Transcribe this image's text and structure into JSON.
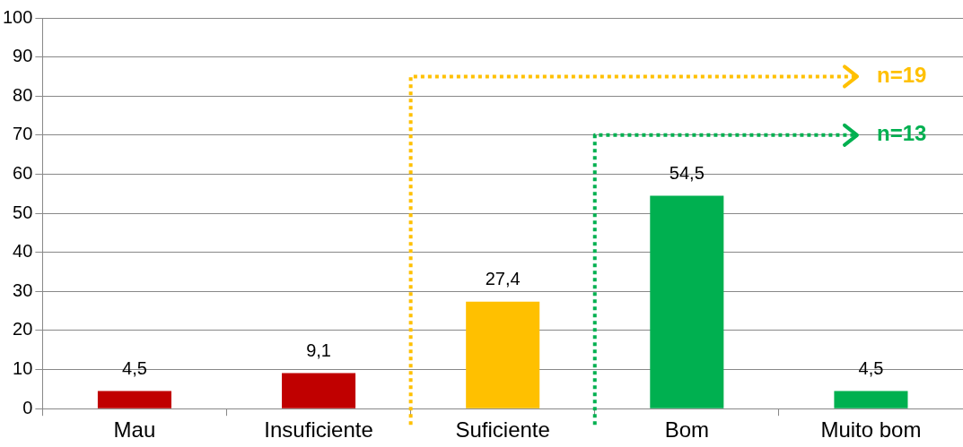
{
  "chart_data": {
    "type": "bar",
    "categories": [
      "Mau",
      "Insuficiente",
      "Suficiente",
      "Bom",
      "Muito bom"
    ],
    "values": [
      4.5,
      9.1,
      27.4,
      54.5,
      4.5
    ],
    "colors": [
      "#c00000",
      "#c00000",
      "#ffc000",
      "#00b050",
      "#00b050"
    ],
    "value_labels": [
      "4,5",
      "9,1",
      "27,4",
      "54,5",
      "4,5"
    ],
    "ylim": [
      0,
      100
    ],
    "yticks": [
      0,
      10,
      20,
      30,
      40,
      50,
      60,
      70,
      80,
      90,
      100
    ],
    "grid": "y",
    "legend": false,
    "annotations": [
      "n=19",
      "n=13"
    ]
  }
}
